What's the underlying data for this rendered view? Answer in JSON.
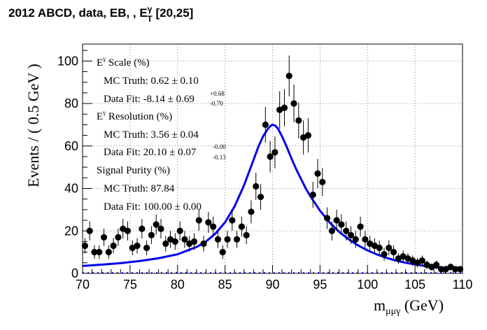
{
  "title": {
    "main": "2012 ABCD, data, EB, , E",
    "sup": "γ",
    "sub": "T",
    "range": " [20,25]"
  },
  "annotations": {
    "scale_header": {
      "E": "E",
      "sup": "γ",
      "rest": " Scale (%)"
    },
    "scale_mc": "MC Truth: 0.62 ± 0.10",
    "scale_fit": "Data Fit: -8.14 ± 0.69",
    "scale_fit_up": "+0.68",
    "scale_fit_down": "-0.70",
    "res_header": {
      "E": "E",
      "sup": "γ",
      "rest": " Resolution (%)"
    },
    "res_mc": "MC Truth: 3.56 ± 0.04",
    "res_fit": "Data Fit: 20.10 ± 0.07",
    "res_fit_up": "-0.00",
    "res_fit_down": "-0.13",
    "purity_header": "Signal Purity (%)",
    "purity_mc": "MC Truth: 87.84",
    "purity_fit": "Data Fit: 100.00 ± 0.00"
  },
  "axes": {
    "xlabel_main": "m",
    "xlabel_sub": "μμγ",
    "xlabel_unit": " (GeV)",
    "ylabel": "Events / ( 0.5 GeV )"
  },
  "colors": {
    "fit_line": "#0000ee",
    "grid": "#888888",
    "points": "#000000",
    "baseline": "#0000ee"
  },
  "chart_data": {
    "type": "scatter",
    "xlim": [
      70,
      110
    ],
    "ylim": [
      0,
      108
    ],
    "xticks": [
      70,
      75,
      80,
      85,
      90,
      95,
      100,
      105,
      110
    ],
    "yticks": [
      0,
      20,
      40,
      60,
      80,
      100
    ],
    "grid": true,
    "series": [
      {
        "kind": "data_points",
        "x": [
          70.25,
          70.75,
          71.25,
          71.75,
          72.25,
          72.75,
          73.25,
          73.75,
          74.25,
          74.75,
          75.25,
          75.75,
          76.25,
          76.75,
          77.25,
          77.75,
          78.25,
          78.75,
          79.25,
          79.75,
          80.25,
          80.75,
          81.25,
          81.75,
          82.25,
          82.75,
          83.25,
          83.75,
          84.25,
          84.75,
          85.25,
          85.75,
          86.25,
          86.75,
          87.25,
          87.75,
          88.25,
          88.75,
          89.25,
          89.75,
          90.25,
          90.75,
          91.25,
          91.75,
          92.25,
          92.75,
          93.25,
          93.75,
          94.25,
          94.75,
          95.25,
          95.75,
          96.25,
          96.75,
          97.25,
          97.75,
          98.25,
          98.75,
          99.25,
          99.75,
          100.25,
          100.75,
          101.25,
          101.75,
          102.25,
          102.75,
          103.25,
          103.75,
          104.25,
          104.75,
          105.25,
          105.75,
          106.25,
          106.75,
          107.25,
          107.75,
          108.25,
          108.75,
          109.25,
          109.75
        ],
        "y": [
          13,
          20,
          10,
          10,
          17,
          10,
          13,
          17,
          21,
          20,
          12,
          13,
          21,
          12,
          18,
          23,
          21,
          14,
          16,
          15,
          20,
          16,
          14,
          15,
          25,
          14,
          24,
          22,
          16,
          10,
          16,
          25,
          16,
          22,
          18,
          29,
          41,
          36,
          70,
          55,
          57,
          77,
          78,
          93,
          80,
          72,
          64,
          65,
          37,
          47,
          43,
          26,
          20,
          25,
          23,
          20,
          18,
          16,
          22,
          16,
          14,
          13,
          12,
          9,
          12,
          10,
          7,
          8,
          7,
          6,
          5,
          6,
          4,
          3,
          4,
          2,
          2,
          3,
          2,
          2
        ],
        "err": [
          3.6,
          4.5,
          3.2,
          3.2,
          4.1,
          3.2,
          3.6,
          4.1,
          4.6,
          4.5,
          3.5,
          3.6,
          4.6,
          3.5,
          4.2,
          4.8,
          4.6,
          3.7,
          4.0,
          3.9,
          4.5,
          4.0,
          3.7,
          3.9,
          5.0,
          3.7,
          4.9,
          4.7,
          4.0,
          3.2,
          4.0,
          5.0,
          4.0,
          4.7,
          4.2,
          5.4,
          6.4,
          6.0,
          8.4,
          7.4,
          7.5,
          8.8,
          8.8,
          9.6,
          8.9,
          8.5,
          8.0,
          8.1,
          6.1,
          6.9,
          6.6,
          5.1,
          4.5,
          5.0,
          4.8,
          4.5,
          4.2,
          4.0,
          4.7,
          4.0,
          3.7,
          3.6,
          3.5,
          3.0,
          3.5,
          3.2,
          2.6,
          2.8,
          2.6,
          2.4,
          2.2,
          2.4,
          2.0,
          1.7,
          2.0,
          1.4,
          1.4,
          1.7,
          1.4,
          1.4
        ]
      },
      {
        "kind": "fit_curve",
        "x": [
          70,
          72,
          74,
          76,
          78,
          80,
          82,
          83,
          84,
          85,
          86,
          87,
          87.5,
          88,
          88.5,
          89,
          89.5,
          89.8,
          90,
          90.3,
          90.6,
          91,
          91.5,
          92,
          92.5,
          93,
          93.5,
          94,
          95,
          96,
          97,
          98,
          99,
          100,
          101,
          102,
          103,
          104,
          105,
          106,
          107,
          108,
          109,
          110
        ],
        "y": [
          3.5,
          4.1,
          4.8,
          5.8,
          7.1,
          9.0,
          12.4,
          15.0,
          18.8,
          24.0,
          31.5,
          41.5,
          47.5,
          53.5,
          59.5,
          64.5,
          68.0,
          69.5,
          70.0,
          69.5,
          68.0,
          64.5,
          59.5,
          54.0,
          49.0,
          44.5,
          40.0,
          36.2,
          29.5,
          24.0,
          19.6,
          16.1,
          13.2,
          10.8,
          8.9,
          7.3,
          6.0,
          5.0,
          4.2,
          3.5,
          2.9,
          2.5,
          2.1,
          1.8
        ]
      }
    ]
  }
}
